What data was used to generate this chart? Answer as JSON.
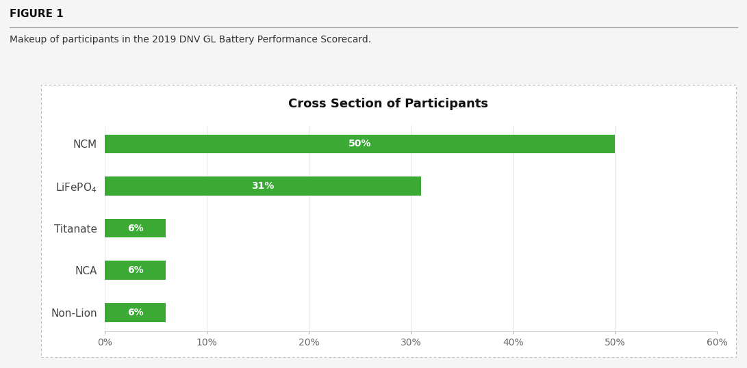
{
  "title": "Cross Section of Participants",
  "figure_label": "FIGURE 1",
  "subtitle": "Makeup of participants in the 2019 DNV GL Battery Performance Scorecard.",
  "categories": [
    "Non-Lion",
    "NCA",
    "Titanate",
    "LiFePO$_4$",
    "NCM"
  ],
  "values": [
    6,
    6,
    6,
    31,
    50
  ],
  "bar_color": "#3aaa35",
  "label_color": "#ffffff",
  "xlim": [
    0,
    60
  ],
  "xticks": [
    0,
    10,
    20,
    30,
    40,
    50,
    60
  ],
  "xticklabels": [
    "0%",
    "10%",
    "20%",
    "30%",
    "40%",
    "50%",
    "60%"
  ],
  "background_color": "#f5f5f5",
  "chart_bg_color": "#ffffff",
  "title_fontsize": 13,
  "label_fontsize": 11,
  "tick_fontsize": 10,
  "bar_label_fontsize": 10,
  "figure_label_fontsize": 11,
  "subtitle_fontsize": 10,
  "bar_height": 0.45
}
